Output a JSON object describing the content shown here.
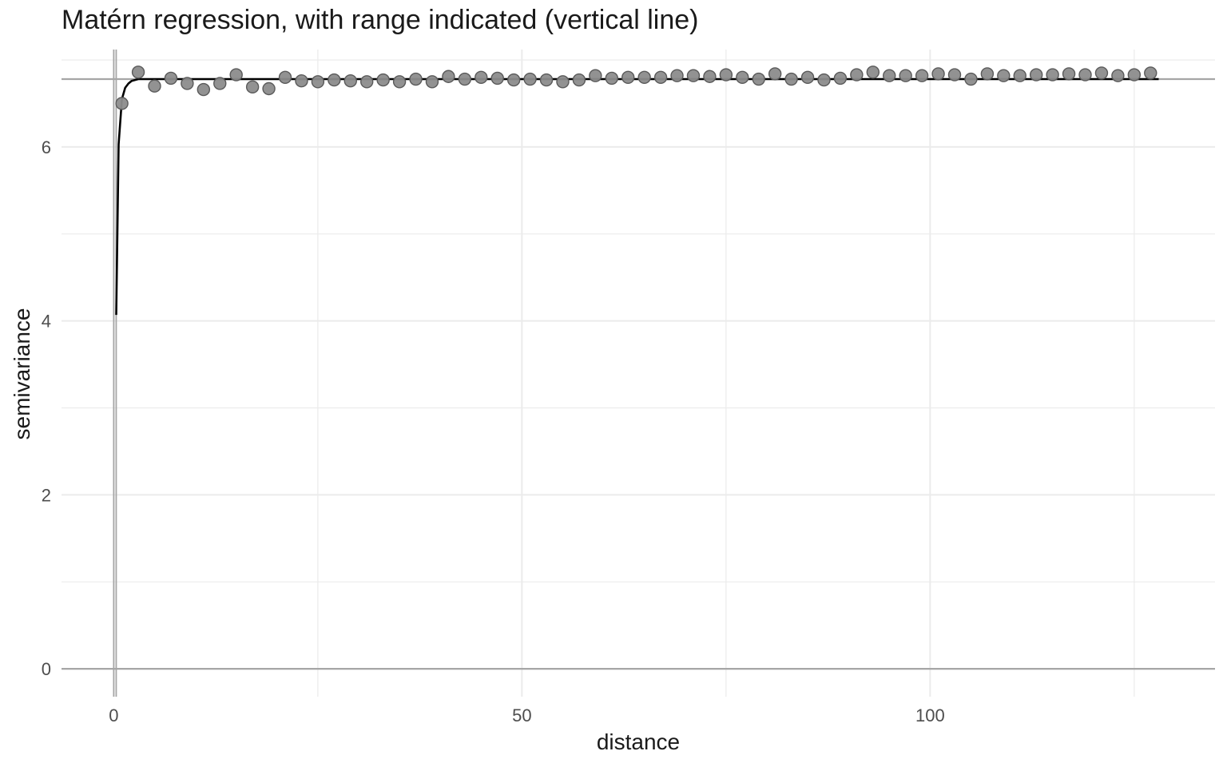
{
  "chart_data": {
    "type": "scatter",
    "title": "Matérn regression, with range indicated (vertical line)",
    "xlabel": "distance",
    "ylabel": "semivariance",
    "xlim": [
      -6.4,
      134.9
    ],
    "ylim": [
      -0.32,
      7.12
    ],
    "x_ticks": [
      0,
      50,
      100
    ],
    "y_ticks": [
      0,
      2,
      4,
      6
    ],
    "grid": true,
    "reference_lines": {
      "horizontal_y": [
        0,
        6.78
      ],
      "vertical_x": [
        0,
        0.3
      ]
    },
    "colors": {
      "points_fill": "#8c8c8c",
      "points_stroke": "#5a5a5a",
      "fit_line": "#000000",
      "reference_line": "#a6a6a6",
      "grid": "#ebebeb"
    },
    "points": {
      "x": [
        1.0,
        3.0,
        5.0,
        7.0,
        9.0,
        11.0,
        13.0,
        15.0,
        17.0,
        19.0,
        21.0,
        23.0,
        25.0,
        27.0,
        29.0,
        31.0,
        33.0,
        35.0,
        37.0,
        39.0,
        41.0,
        43.0,
        45.0,
        47.0,
        49.0,
        51.0,
        53.0,
        55.0,
        57.0,
        59.0,
        61.0,
        63.0,
        65.0,
        67.0,
        69.0,
        71.0,
        73.0,
        75.0,
        77.0,
        79.0,
        81.0,
        83.0,
        85.0,
        87.0,
        89.0,
        91.0,
        93.0,
        95.0,
        97.0,
        99.0,
        101.0,
        103.0,
        105.0,
        107.0,
        109.0,
        111.0,
        113.0,
        115.0,
        117.0,
        119.0,
        121.0,
        123.0,
        125.0,
        127.0
      ],
      "y": [
        6.5,
        6.86,
        6.7,
        6.79,
        6.73,
        6.66,
        6.73,
        6.83,
        6.69,
        6.67,
        6.8,
        6.76,
        6.75,
        6.77,
        6.76,
        6.75,
        6.77,
        6.75,
        6.78,
        6.75,
        6.81,
        6.78,
        6.8,
        6.79,
        6.77,
        6.78,
        6.77,
        6.75,
        6.77,
        6.82,
        6.79,
        6.8,
        6.8,
        6.8,
        6.82,
        6.82,
        6.81,
        6.83,
        6.8,
        6.78,
        6.84,
        6.78,
        6.8,
        6.77,
        6.79,
        6.83,
        6.86,
        6.82,
        6.82,
        6.82,
        6.84,
        6.83,
        6.78,
        6.84,
        6.82,
        6.82,
        6.83,
        6.83,
        6.84,
        6.83,
        6.85,
        6.82,
        6.83,
        6.85
      ]
    },
    "fit_line": {
      "x": [
        0.3,
        0.6,
        1.0,
        1.4,
        1.8,
        2.2,
        2.6,
        3.0,
        4.0,
        6.0,
        10.0,
        20.0,
        40.0,
        60.0,
        80.0,
        100.0,
        120.0,
        128.0
      ],
      "y": [
        4.07,
        6.03,
        6.55,
        6.68,
        6.73,
        6.76,
        6.77,
        6.78,
        6.78,
        6.78,
        6.78,
        6.78,
        6.78,
        6.78,
        6.78,
        6.78,
        6.78,
        6.78
      ]
    }
  }
}
